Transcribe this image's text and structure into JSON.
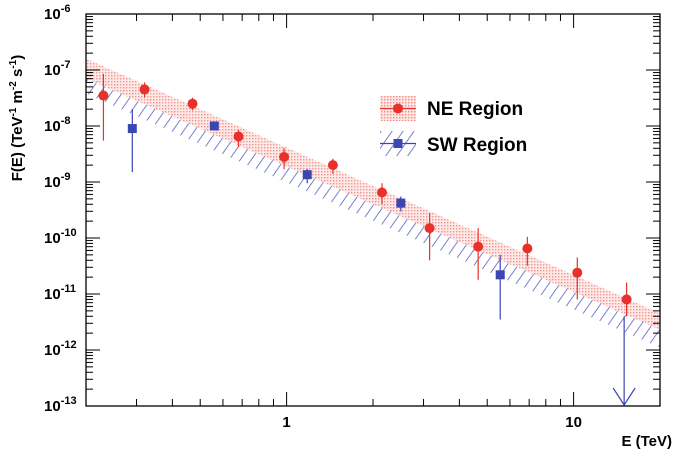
{
  "chart_data": {
    "type": "scatter",
    "title": "",
    "xlabel": "E (TeV)",
    "ylabel": {
      "base": "F(E) (TeV",
      "sup1": "-1",
      "mid1": " m",
      "sup2": "-2",
      "mid2": " s",
      "sup3": "-1",
      "end": ")"
    },
    "x_scale": "log",
    "y_scale": "log",
    "xlim": [
      0.2,
      20
    ],
    "ylim": [
      1e-13,
      1e-06
    ],
    "x_tick_labels": [
      {
        "value": 1,
        "label": "1"
      },
      {
        "value": 10,
        "label": "10"
      }
    ],
    "y_tick_labels": [
      {
        "value": 1e-13,
        "base": "10",
        "exp": "-13"
      },
      {
        "value": 1e-12,
        "base": "10",
        "exp": "-12"
      },
      {
        "value": 1e-11,
        "base": "10",
        "exp": "-11"
      },
      {
        "value": 1e-10,
        "base": "10",
        "exp": "-10"
      },
      {
        "value": 1e-09,
        "base": "10",
        "exp": "-9"
      },
      {
        "value": 1e-08,
        "base": "10",
        "exp": "-8"
      },
      {
        "value": 1e-07,
        "base": "10",
        "exp": "-7"
      },
      {
        "value": 1e-06,
        "base": "10",
        "exp": "-6"
      }
    ],
    "grid": false,
    "legend_position": "top-right",
    "series": [
      {
        "name": "NE Region",
        "color": "#e8312a",
        "marker": "circle",
        "points": [
          {
            "x": 0.23,
            "y": 3.5e-08,
            "ylo": 5.5e-09,
            "yhi": 8.5e-08
          },
          {
            "x": 0.32,
            "y": 4.5e-08,
            "ylo": 3.2e-08,
            "yhi": 6e-08
          },
          {
            "x": 0.47,
            "y": 2.5e-08,
            "ylo": 1.9e-08,
            "yhi": 3.2e-08
          },
          {
            "x": 0.68,
            "y": 6.5e-09,
            "ylo": 4.2e-09,
            "yhi": 8.5e-09
          },
          {
            "x": 0.98,
            "y": 2.8e-09,
            "ylo": 1.7e-09,
            "yhi": 4e-09
          },
          {
            "x": 1.45,
            "y": 2e-09,
            "ylo": 1.4e-09,
            "yhi": 2.6e-09
          },
          {
            "x": 2.15,
            "y": 6.5e-10,
            "ylo": 4e-10,
            "yhi": 9.5e-10
          },
          {
            "x": 3.15,
            "y": 1.5e-10,
            "ylo": 4e-11,
            "yhi": 2.8e-10
          },
          {
            "x": 4.65,
            "y": 7e-11,
            "ylo": 1.8e-11,
            "yhi": 1.5e-10
          },
          {
            "x": 6.9,
            "y": 6.5e-11,
            "ylo": 3.2e-11,
            "yhi": 1.05e-10
          },
          {
            "x": 10.3,
            "y": 2.4e-11,
            "ylo": 8e-12,
            "yhi": 4.5e-11
          },
          {
            "x": 15.3,
            "y": 8e-12,
            "ylo": 4e-12,
            "yhi": 1.6e-11
          }
        ],
        "band": {
          "x": [
            0.2,
            20
          ],
          "upper": [
            1.6e-07,
            4.5e-12
          ],
          "lower": [
            7e-08,
            2.3e-12
          ]
        }
      },
      {
        "name": "SW Region",
        "color": "#3a46b2",
        "marker": "square",
        "points": [
          {
            "x": 0.29,
            "y": 9e-09,
            "ylo": 1.5e-09,
            "yhi": 2e-08
          },
          {
            "x": 0.56,
            "y": 1e-08,
            "ylo": 8.5e-09,
            "yhi": 1.2e-08
          },
          {
            "x": 1.18,
            "y": 1.35e-09,
            "ylo": 9.5e-10,
            "yhi": 1.7e-09
          },
          {
            "x": 2.5,
            "y": 4.2e-10,
            "ylo": 3e-10,
            "yhi": 5.5e-10
          },
          {
            "x": 5.55,
            "y": 2.2e-11,
            "ylo": 3.5e-12,
            "yhi": 5e-11
          }
        ],
        "upper_limits": [
          {
            "x": 15.0,
            "y": 4e-12
          }
        ],
        "band": {
          "x": [
            0.2,
            20
          ],
          "upper": [
            1e-07,
            2.8e-12
          ],
          "lower": [
            3.8e-08,
            1.1e-12
          ]
        }
      }
    ]
  }
}
